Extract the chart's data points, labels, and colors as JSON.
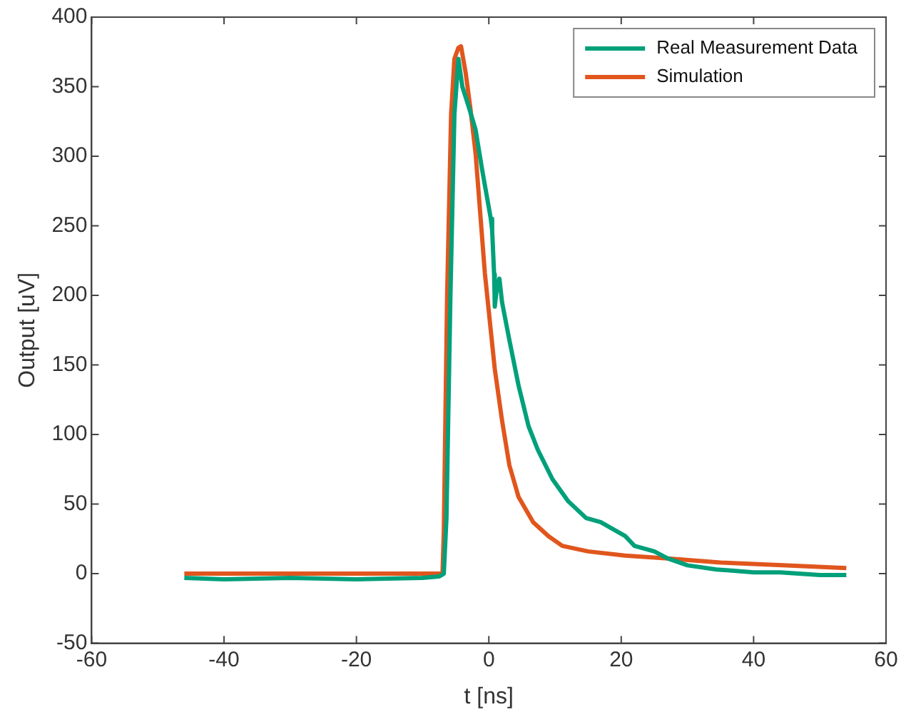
{
  "chart_data": {
    "type": "line",
    "xlabel": "t [ns]",
    "ylabel": "Output [uV]",
    "xlim": [
      -60,
      60
    ],
    "ylim": [
      -50,
      400
    ],
    "xticks": [
      -60,
      -40,
      -20,
      0,
      20,
      40,
      60
    ],
    "yticks": [
      -50,
      0,
      50,
      100,
      150,
      200,
      250,
      300,
      350,
      400
    ],
    "grid": false,
    "legend": "top right",
    "marker": "none",
    "line_style": "solid",
    "series": [
      {
        "name": "Real Measurement Data",
        "color": "#00a07a",
        "x": [
          -46,
          -40,
          -30,
          -20,
          -10,
          -7.5,
          -6.8,
          -6.4,
          -5.8,
          -5.2,
          -4.6,
          -4,
          -3,
          -2,
          -1,
          0.3,
          0.5,
          0.8,
          0.9,
          1.2,
          1.6,
          2,
          3.1,
          4.5,
          6,
          7.4,
          9.6,
          12,
          14.7,
          16.9,
          20.6,
          22,
          25,
          27,
          30,
          34.4,
          40,
          44,
          50,
          54
        ],
        "values": [
          -3,
          -4,
          -3,
          -4,
          -3,
          -2,
          0,
          40,
          200,
          330,
          370,
          350,
          335,
          319,
          290,
          255,
          247,
          215,
          192,
          205,
          212,
          195,
          168,
          135,
          106,
          89,
          68,
          52,
          40,
          37,
          27,
          20,
          16,
          11,
          6,
          3,
          1,
          1,
          -1,
          -1
        ]
      },
      {
        "name": "Simulation",
        "color": "#e0561d",
        "x": [
          -46,
          -40,
          -30,
          -20,
          -10,
          -7,
          -6.8,
          -6.3,
          -5.7,
          -5.2,
          -4.6,
          -4.2,
          -3.5,
          -2.8,
          -2,
          -0.6,
          0.9,
          2,
          3.1,
          4.5,
          6.7,
          9,
          11.1,
          15,
          20.6,
          27,
          35,
          45,
          54
        ],
        "values": [
          0,
          0,
          0,
          0,
          0,
          0,
          30,
          200,
          330,
          370,
          378,
          379,
          360,
          335,
          302,
          216,
          147,
          110,
          78,
          55,
          37,
          27,
          20,
          16,
          13,
          11,
          8,
          6,
          4
        ]
      }
    ]
  }
}
